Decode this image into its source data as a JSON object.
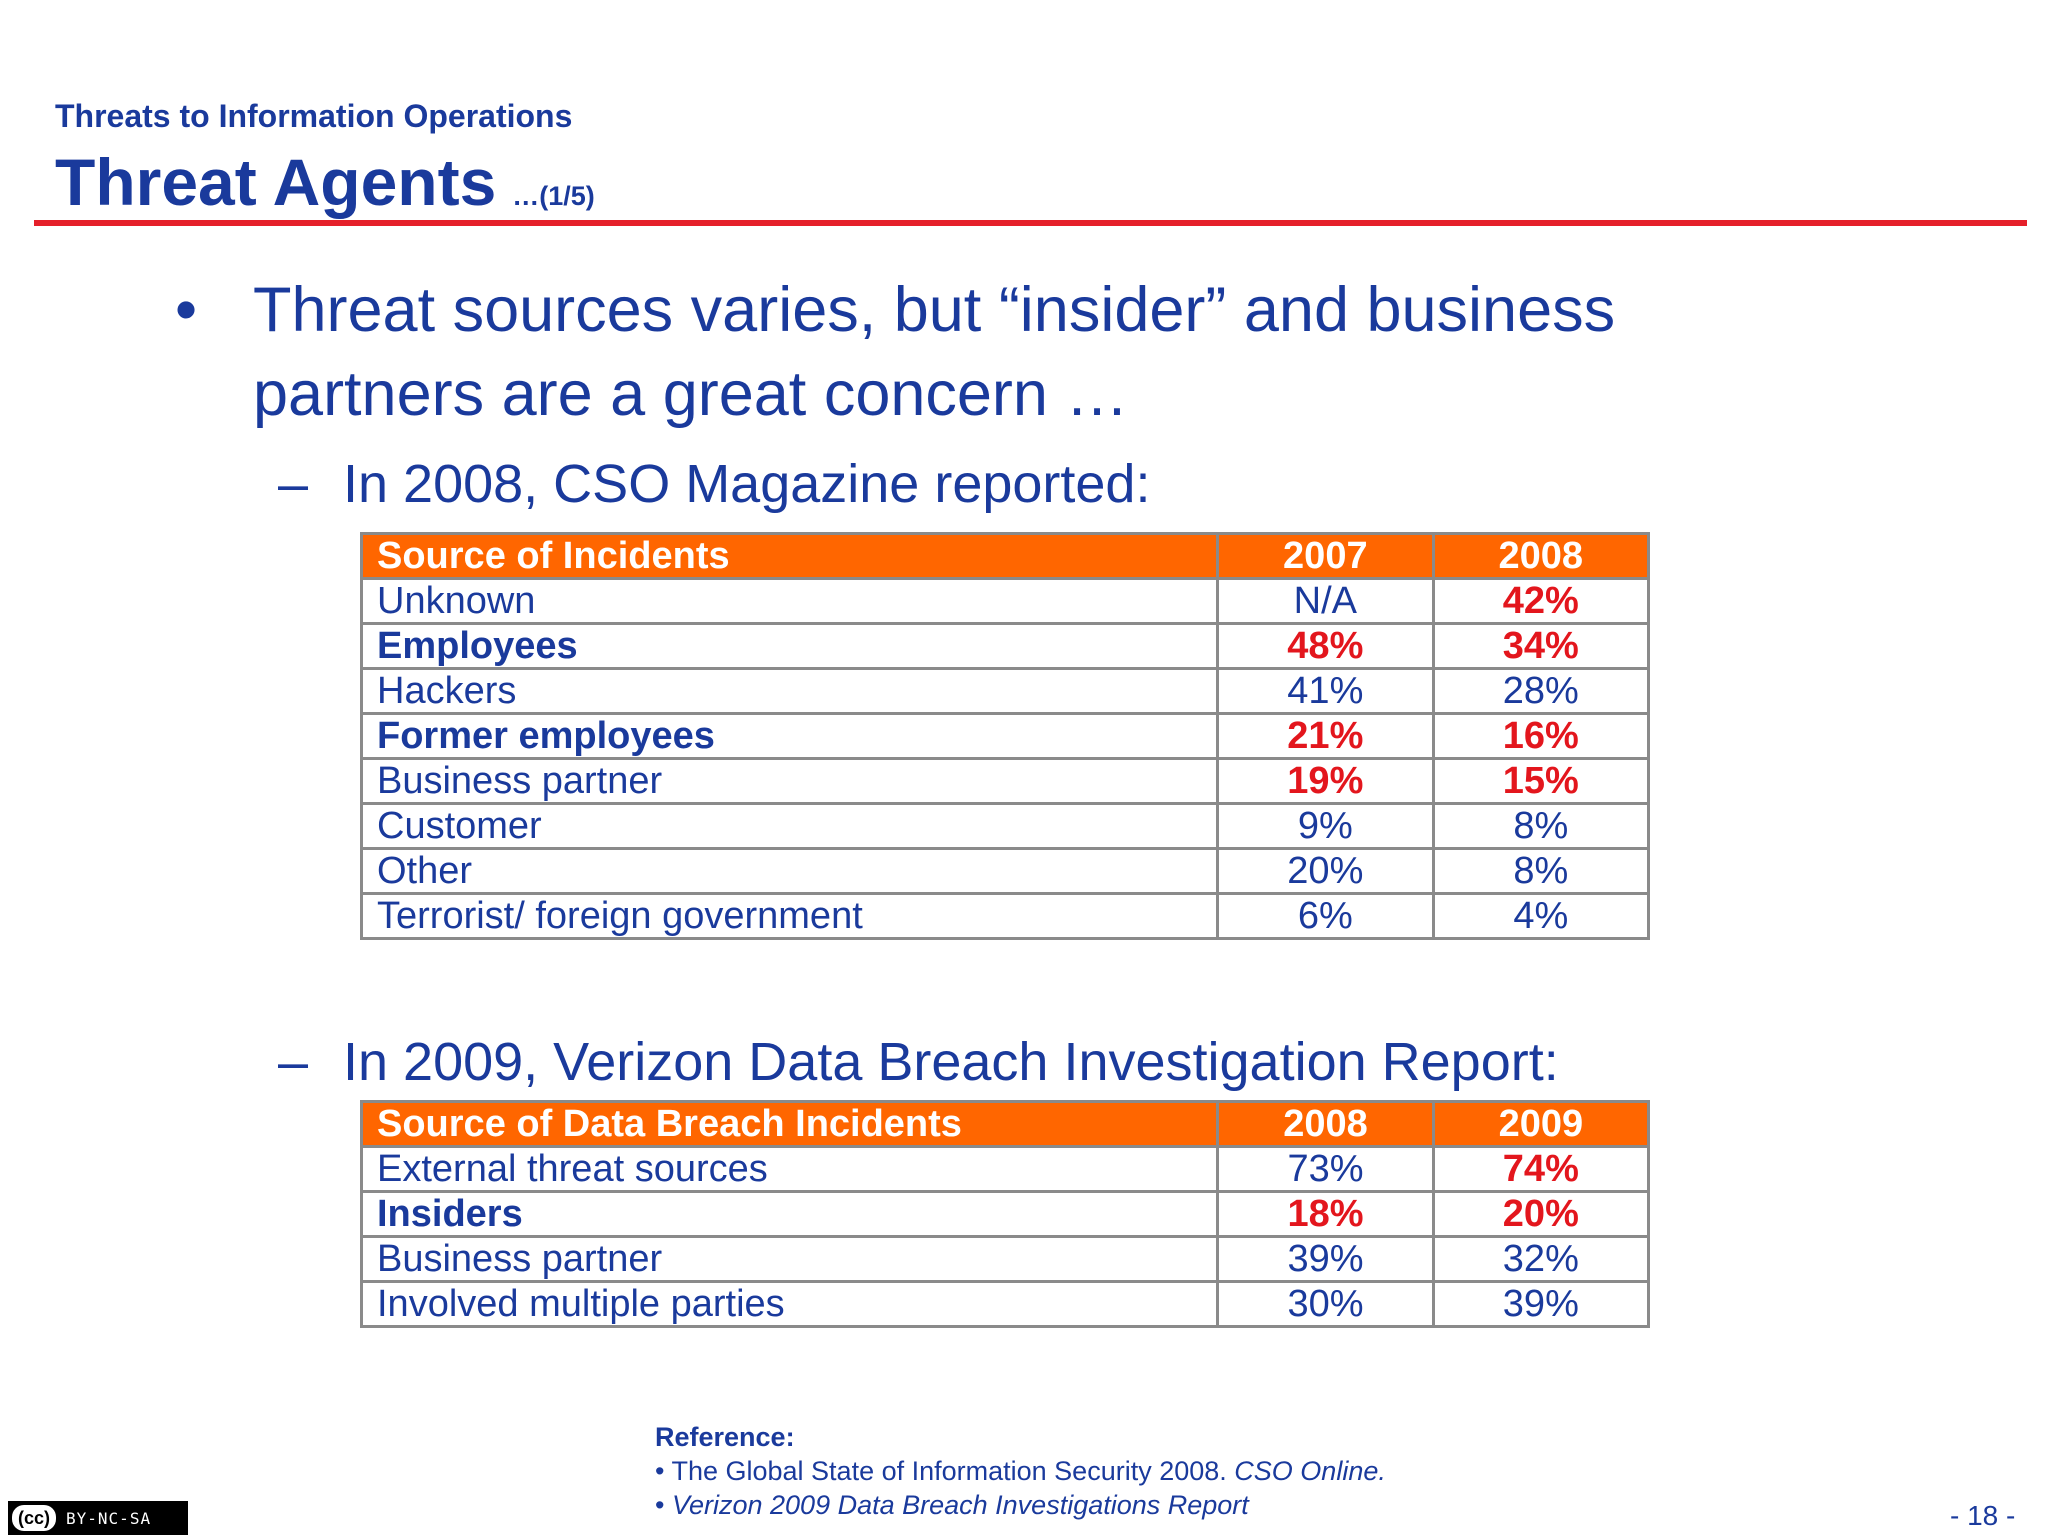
{
  "header": {
    "subtitle": "Threats to Information Operations",
    "title": "Threat Agents",
    "part": "…(1/5)"
  },
  "bullet": {
    "marker": "•",
    "text": "Threat sources varies, but “insider” and business partners are a great concern …"
  },
  "section1": {
    "marker": "–",
    "text": "In 2008, CSO Magazine reported:"
  },
  "table1": {
    "headers": [
      "Source of Incidents",
      "2007",
      "2008"
    ],
    "rows": [
      [
        "Unknown",
        "N/A",
        "42%"
      ],
      [
        "Employees",
        "48%",
        "34%"
      ],
      [
        "Hackers",
        "41%",
        "28%"
      ],
      [
        "Former employees",
        "21%",
        "16%"
      ],
      [
        "Business partner",
        "19%",
        "15%"
      ],
      [
        "Customer",
        "9%",
        "8%"
      ],
      [
        "Other",
        "20%",
        "8%"
      ],
      [
        "Terrorist/ foreign government",
        "6%",
        "4%"
      ]
    ]
  },
  "section2": {
    "marker": "–",
    "text": "In 2009, Verizon Data Breach Investigation Report:"
  },
  "table2": {
    "headers": [
      "Source of  Data Breach Incidents",
      "2008",
      "2009"
    ],
    "rows": [
      [
        "External threat sources",
        "73%",
        "74%"
      ],
      [
        "Insiders",
        "18%",
        "20%"
      ],
      [
        "Business partner",
        "39%",
        "32%"
      ],
      [
        "Involved multiple parties",
        "30%",
        "39%"
      ]
    ]
  },
  "reference": {
    "heading": "Reference:",
    "item1_prefix": "• The Global State of Information Security 2008.",
    "item1_italic": "CSO Online.",
    "item2_prefix": "•",
    "item2_italic": "Verizon 2009 Data Breach Investigations Report"
  },
  "license": {
    "cc": "(cc)",
    "terms": "BY-NC-SA"
  },
  "page_number": "- 18 -"
}
